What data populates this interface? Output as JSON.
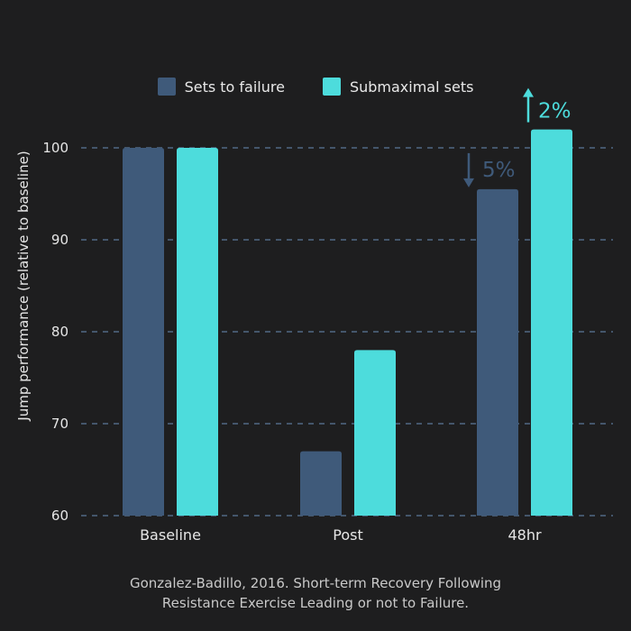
{
  "chart_data": {
    "type": "bar",
    "categories": [
      "Baseline",
      "Post",
      "48hr"
    ],
    "series": [
      {
        "name": "Sets to failure",
        "values": [
          100,
          67,
          95.5
        ],
        "color": "#3f5a7a"
      },
      {
        "name": "Submaximal sets",
        "values": [
          100,
          78,
          102
        ],
        "color": "#4ddcdc"
      }
    ],
    "ylabel": "Jump performance (relative to baseline)",
    "ylim": [
      60,
      102
    ],
    "yticks": [
      60,
      70,
      80,
      90,
      100
    ],
    "grid": true,
    "legend_position": "top-center",
    "annotations": [
      {
        "category": "48hr",
        "series": "Sets to failure",
        "direction": "down",
        "label": "5%"
      },
      {
        "category": "48hr",
        "series": "Submaximal sets",
        "direction": "up",
        "label": "2%"
      }
    ]
  },
  "source": {
    "line1": "Gonzalez-Badillo, 2016. Short-term Recovery Following",
    "line2": "Resistance Exercise Leading or not to Failure."
  }
}
